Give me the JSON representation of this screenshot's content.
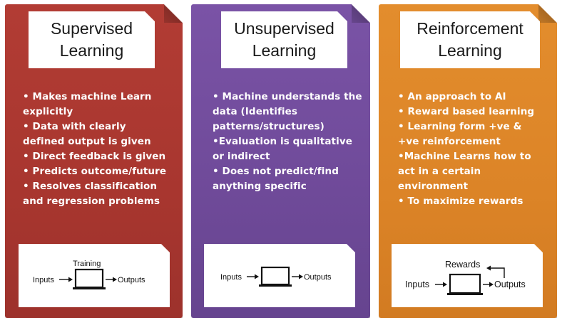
{
  "panels": [
    {
      "title_line1": "Supervised",
      "title_line2": "Learning",
      "color": "#a8362f",
      "bullets": [
        "• Makes machine Learn",
        "explicitly",
        "• Data with clearly",
        "defined output is given",
        "• Direct feedback is given",
        "• Predicts outcome/future",
        "• Resolves classification",
        "and regression problems"
      ],
      "diagram": {
        "top_label": "Training",
        "input_label": "Inputs",
        "output_label": "Outputs"
      }
    },
    {
      "title_line1": "Unsupervised",
      "title_line2": "Learning",
      "color": "#6f4a99",
      "bullets": [
        "• Machine understands the",
        "data (Identifies",
        "patterns/structures)",
        "•Evaluation is qualitative",
        "or indirect",
        "• Does not  predict/find",
        "anything specific"
      ],
      "diagram": {
        "input_label": "Inputs",
        "output_label": "Outputs"
      }
    },
    {
      "title_line1": "Reinforcement",
      "title_line2": "Learning",
      "color": "#dc8427",
      "bullets": [
        "• An approach to AI",
        "• Reward based learning",
        "• Learning form +ve &",
        "+ve reinforcement",
        "•Machine Learns how to",
        "act in a certain",
        "environment",
        "• To maximize rewards"
      ],
      "diagram": {
        "top_label": "Rewards",
        "input_label": "Inputs",
        "output_label": "Outputs"
      }
    }
  ]
}
